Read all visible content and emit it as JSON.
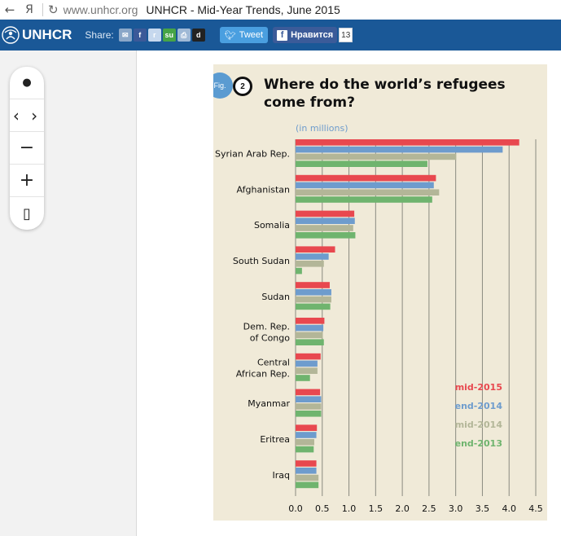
{
  "browser": {
    "back_icon": "back-arrow-icon",
    "yandex_label": "Я",
    "url_host": "www.unhcr.org",
    "title": "UNHCR - Mid-Year Trends, June 2015"
  },
  "sharebar": {
    "logo_text": "UNHCR",
    "share_label": "Share:",
    "share_icons": [
      {
        "name": "email-share-icon",
        "glyph": "✉",
        "color": "#8aa7c8"
      },
      {
        "name": "facebook-share-icon",
        "glyph": "f",
        "color": "#3b5998"
      },
      {
        "name": "reddit-share-icon",
        "glyph": "r",
        "color": "#c6d8ee"
      },
      {
        "name": "stumbleupon-share-icon",
        "glyph": "su",
        "color": "#47a446"
      },
      {
        "name": "print-share-icon",
        "glyph": "⎙",
        "color": "#9fb9d6"
      },
      {
        "name": "delicious-share-icon",
        "glyph": "d",
        "color": "#222222"
      }
    ],
    "tweet_label": "Tweet",
    "like_label": "Нравится",
    "like_count": "13"
  },
  "viewer": {
    "controls": [
      {
        "name": "dot-icon",
        "glyph": "●"
      },
      {
        "name": "prev-next-icon",
        "glyph": "‹ ›"
      },
      {
        "name": "zoom-out-icon",
        "glyph": "−"
      },
      {
        "name": "zoom-in-icon",
        "glyph": "+"
      },
      {
        "name": "fit-page-icon",
        "glyph": "▯"
      }
    ]
  },
  "figure": {
    "fig_label": "Fig.",
    "fig_number": "2",
    "title_line1": "Where do the world’s refugees",
    "title_line2": "come from?"
  },
  "chart_data": {
    "type": "bar",
    "orientation": "horizontal",
    "unit_label": "(in millions)",
    "categories": [
      "Syrian Arab Rep.",
      "Afghanistan",
      "Somalia",
      "South Sudan",
      "Sudan",
      "Dem. Rep. of Congo",
      "Central African Rep.",
      "Myanmar",
      "Eritrea",
      "Iraq"
    ],
    "category_lines": [
      [
        "Syrian Arab Rep."
      ],
      [
        "Afghanistan"
      ],
      [
        "Somalia"
      ],
      [
        "South Sudan"
      ],
      [
        "Sudan"
      ],
      [
        "Dem. Rep.",
        "of Congo"
      ],
      [
        "Central",
        "African Rep."
      ],
      [
        "Myanmar"
      ],
      [
        "Eritrea"
      ],
      [
        "Iraq"
      ]
    ],
    "series": [
      {
        "name": "mid-2015",
        "color": "#e8484f",
        "values": [
          4.19,
          2.63,
          1.1,
          0.74,
          0.64,
          0.54,
          0.47,
          0.46,
          0.4,
          0.39
        ]
      },
      {
        "name": "end-2014",
        "color": "#6e9ccd",
        "values": [
          3.88,
          2.59,
          1.11,
          0.62,
          0.67,
          0.52,
          0.41,
          0.48,
          0.39,
          0.39
        ]
      },
      {
        "name": "mid-2014",
        "color": "#b3b698",
        "values": [
          3.01,
          2.69,
          1.08,
          0.53,
          0.67,
          0.51,
          0.41,
          0.48,
          0.35,
          0.43
        ]
      },
      {
        "name": "end-2013",
        "color": "#6fb46e",
        "values": [
          2.47,
          2.56,
          1.12,
          0.12,
          0.65,
          0.53,
          0.27,
          0.48,
          0.34,
          0.43
        ]
      }
    ],
    "xlim": [
      0,
      4.5
    ],
    "xticks": [
      "0.0",
      "0.5",
      "1.0",
      "1.5",
      "2.0",
      "2.5",
      "3.0",
      "3.5",
      "4.0",
      "4.5"
    ],
    "grid": true,
    "legend_position": "right"
  }
}
